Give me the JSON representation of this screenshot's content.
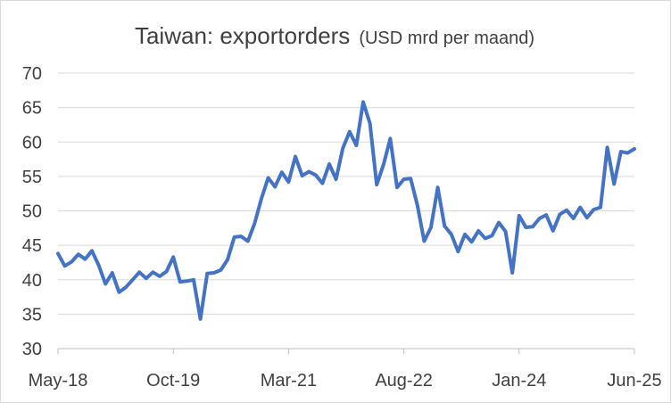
{
  "chart_data": {
    "type": "line",
    "title": "Taiwan: exportorders",
    "subtitle": "(USD mrd per maand)",
    "xlabel": "",
    "ylabel": "",
    "ylim": [
      30,
      70
    ],
    "yticks": [
      "30",
      "35",
      "40",
      "45",
      "50",
      "55",
      "60",
      "65",
      "70"
    ],
    "xticks": [
      "May-18",
      "Oct-19",
      "Mar-21",
      "Aug-22",
      "Jan-24",
      "Jun-25"
    ],
    "grid": "horizontal",
    "legend": "none",
    "colors": {
      "line": "#4472C4",
      "grid": "#d9d9d9",
      "axis": "#bfbfbf",
      "text": "#404040"
    },
    "series": [
      {
        "values": [
          43.8,
          42.0,
          42.6,
          43.7,
          43.0,
          44.2,
          42.1,
          39.4,
          41.0,
          38.2,
          38.9,
          40.0,
          41.1,
          40.2,
          41.1,
          40.5,
          41.2,
          43.3,
          39.7,
          39.8,
          40.0,
          34.3,
          40.9,
          41.0,
          41.4,
          42.9,
          46.2,
          46.3,
          45.6,
          48.2,
          51.8,
          54.8,
          53.5,
          55.6,
          54.2,
          57.9,
          55.1,
          55.7,
          55.2,
          54.0,
          56.8,
          54.6,
          59.1,
          61.5,
          59.5,
          65.8,
          62.7,
          53.8,
          56.7,
          60.5,
          53.4,
          54.6,
          54.7,
          50.8,
          45.6,
          47.6,
          53.4,
          47.8,
          46.6,
          44.1,
          46.6,
          45.5,
          47.1,
          46.0,
          46.4,
          48.3,
          47.0,
          41.0,
          49.3,
          47.6,
          47.7,
          48.9,
          49.4,
          47.1,
          49.5,
          50.1,
          48.9,
          50.5,
          49.0,
          50.2,
          50.5,
          59.2,
          53.9,
          58.6,
          58.4,
          59.0
        ]
      }
    ]
  }
}
